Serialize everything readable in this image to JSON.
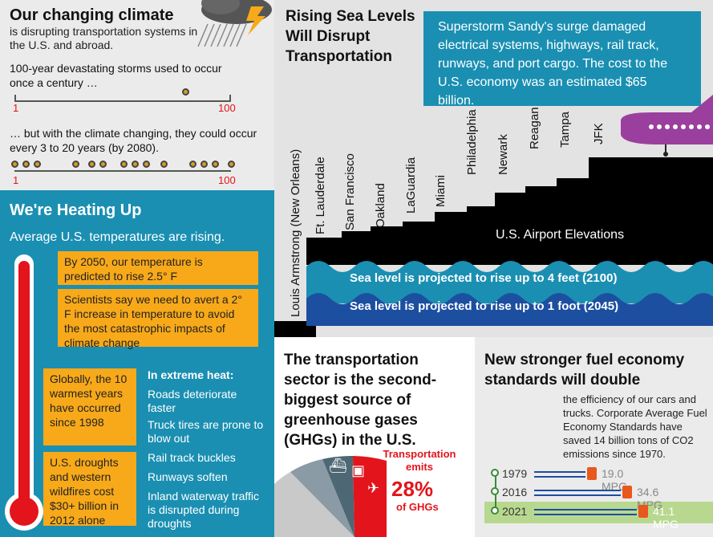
{
  "climate": {
    "title": "Our changing climate",
    "subtitle": "is disrupting transportation systems in the U.S. and abroad.",
    "storm_line1": "100-year devastating storms used to occur once a century …",
    "storm_line2": "… but with the climate changing, they could occur every 3 to 20 years (by 2080).",
    "scale_min": "1",
    "scale_max": "100"
  },
  "heat": {
    "title": "We're Heating Up",
    "subtitle": "Average U.S. temperatures are rising.",
    "box1": "By 2050, our temperature is predicted to rise 2.5° F",
    "box2": "Scientists say we need to avert a 2° F increase in temperature to avoid the most catastrophic impacts of climate change",
    "box3": "Globally, the 10 warmest years have occurred since 1998",
    "box4": "U.S. droughts and western wildfires cost $30+ billion in 2012 alone",
    "extreme_title": "In extreme heat:",
    "extreme_items": [
      "Roads deteriorate faster",
      "Truck tires are prone to blow out",
      "Rail track buckles",
      "Runways soften",
      "Inland waterway traffic is disrupted during droughts"
    ]
  },
  "sea": {
    "title": "Rising Sea Levels Will Disrupt Transportation",
    "sandy": "Superstorm Sandy's surge damaged electrical systems, highways, rail track, runways, and port cargo. The cost to the U.S. economy was an estimated $65 billion.",
    "airports": [
      "Louis Armstrong (New Orleans)",
      "Ft. Lauderdale",
      "San Francisco",
      "Oakland",
      "LaGuardia",
      "Miami",
      "Philadelphia",
      "Newark",
      "Reagan",
      "Tampa",
      "JFK"
    ],
    "elevations_label": "U.S. Airport Elevations",
    "rise_4ft": "Sea level is projected to rise up to 4 feet (2100)",
    "rise_1ft": "Sea level is projected to rise up to 1 foot (2045)"
  },
  "ghg": {
    "title": "The transportation sector is the second-biggest source of greenhouse gases (GHGs) in the U.S.",
    "emits": "Transportation emits",
    "percent": "28%",
    "of": "of GHGs",
    "share": 0.28
  },
  "fuel": {
    "title": "New stronger fuel economy standards will double",
    "body": "the efficiency of our cars and trucks. Corporate Average Fuel Economy Standards have saved 14 billion tons of CO2 emissions since 1970.",
    "rows": [
      {
        "year": "1979",
        "mpg": "19.0 MPG"
      },
      {
        "year": "2016",
        "mpg": "34.6 MPG"
      },
      {
        "year": "2021",
        "mpg": "41.1 MPG"
      }
    ]
  },
  "colors": {
    "accent_blue": "#1a8fb2",
    "accent_yellow": "#f8a919",
    "red": "#e3141c",
    "purple": "#9b3f9e",
    "green": "#b8d88f"
  }
}
